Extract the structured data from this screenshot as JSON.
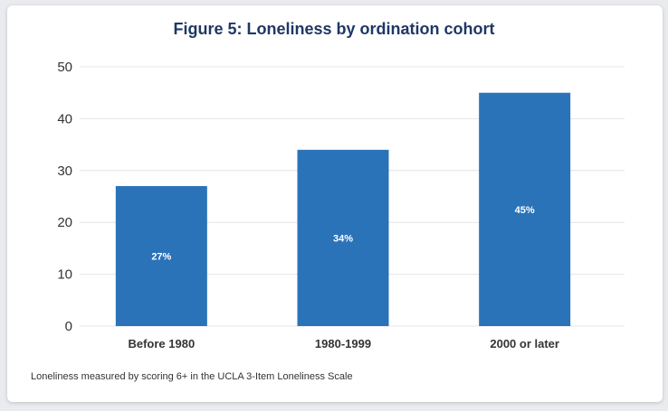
{
  "chart_data": {
    "type": "bar",
    "title": "Figure 5:  Loneliness by ordination cohort",
    "categories": [
      "Before 1980",
      "1980-1999",
      "2000 or later"
    ],
    "values": [
      27,
      34,
      45
    ],
    "value_labels": [
      "27%",
      "34%",
      "45%"
    ],
    "ylim": [
      0,
      50
    ],
    "yticks": [
      0,
      10,
      20,
      30,
      40,
      50
    ],
    "grid": true,
    "bar_color": "#2a73b8",
    "xlabel": "",
    "ylabel": ""
  },
  "footnote": "Loneliness measured by scoring 6+ in the UCLA 3-Item Loneliness Scale",
  "colors": {
    "title": "#1f3864",
    "bar": "#2a73b8",
    "grid": "#e4e4e4"
  }
}
